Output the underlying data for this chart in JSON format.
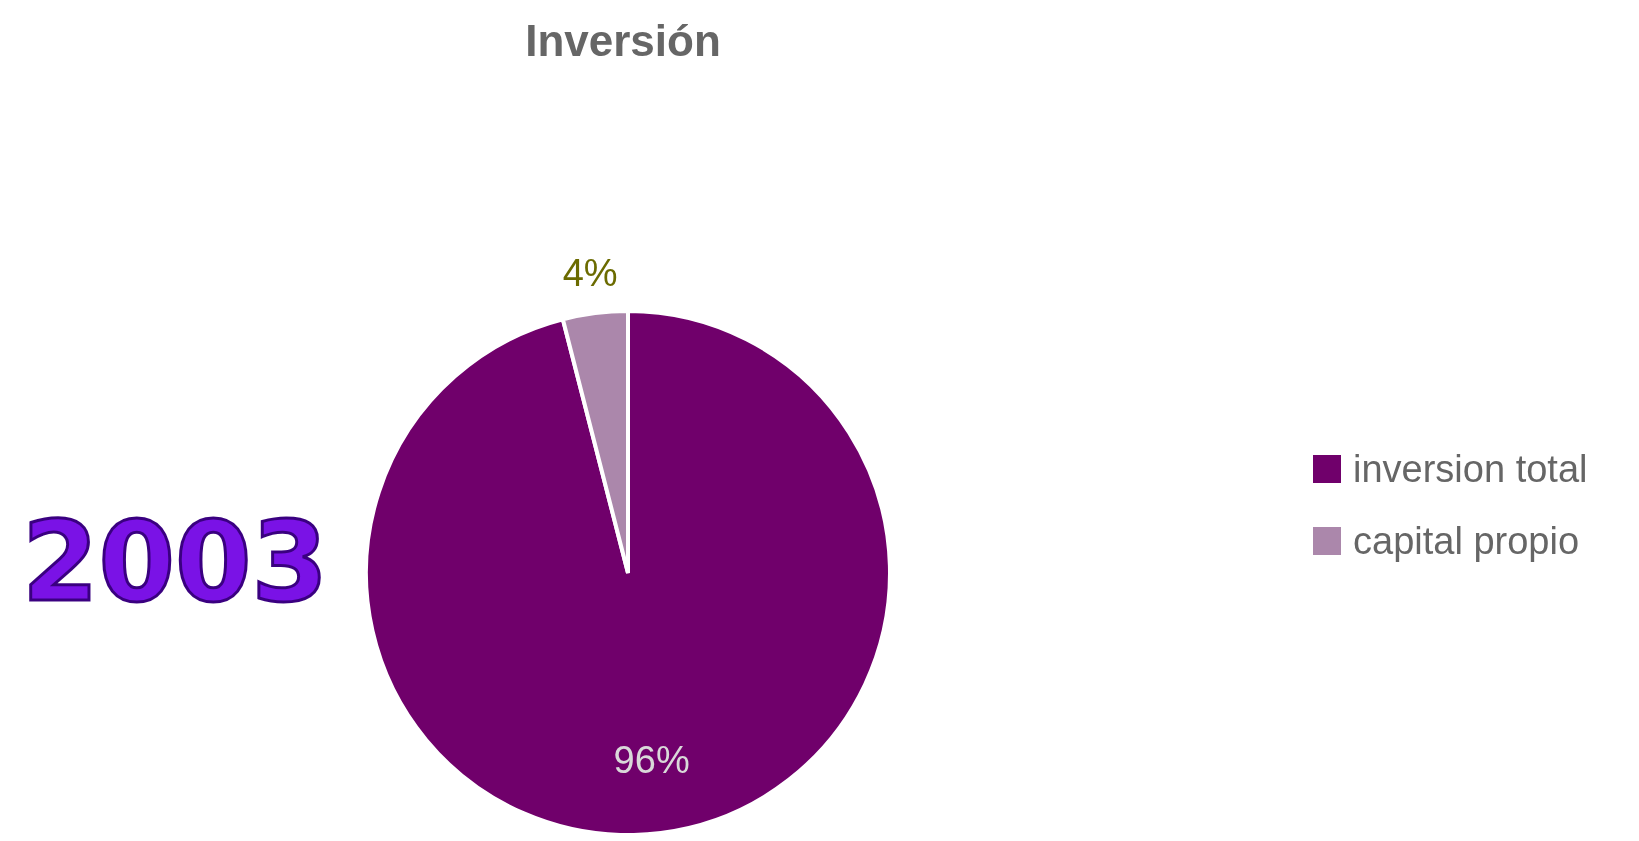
{
  "chart_data": {
    "type": "pie",
    "title": "Inversión",
    "categories": [
      "inversion total",
      "capital propio"
    ],
    "values": [
      96,
      4
    ],
    "colors": [
      "#70006b",
      "#ab87ab"
    ],
    "value_labels": [
      "96%",
      "4%"
    ],
    "legend": "right",
    "annotations": [
      "2003"
    ]
  }
}
